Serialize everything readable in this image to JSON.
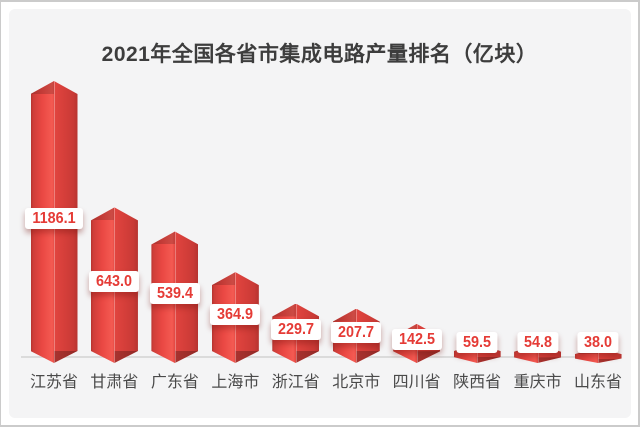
{
  "page": {
    "background": "#ffffff",
    "panel_background": "#f4f4f5",
    "frame_border_color": "#cbcbcb"
  },
  "chart_data": {
    "type": "bar",
    "title": "2021年全国各省市集成电路产量排名（亿块）",
    "title_color": "#3d3d3d",
    "categories": [
      "江苏省",
      "甘肃省",
      "广东省",
      "上海市",
      "浙江省",
      "北京市",
      "四川省",
      "陕西省",
      "重庆市",
      "山东省"
    ],
    "values": [
      1186.1,
      643.0,
      539.4,
      364.9,
      229.7,
      207.7,
      142.5,
      59.5,
      54.8,
      38.0
    ],
    "value_labels": [
      "1186.1",
      "643.0",
      "539.4",
      "364.9",
      "229.7",
      "207.7",
      "142.5",
      "59.5",
      "54.8",
      "38.0"
    ],
    "unit": "亿块",
    "ylim": [
      0,
      1186.1
    ],
    "grid": false,
    "legend": "none",
    "orientation": "vertical",
    "bar_shape": "pointed-top-and-bottom-crystal",
    "value_text_color": "#e53b36",
    "category_color": "#4a4a4a",
    "axis_line_color": "#dbdbdb",
    "bar_gradient": [
      "#b5342f",
      "#cf3e39",
      "#ea4843",
      "#f45a52",
      "#e0443f",
      "#d63f3a",
      "#c93a36",
      "#b53430"
    ],
    "bar_shade_dark": "rgba(0,0,0,0.16)",
    "bar_shade_darker": "rgba(0,0,0,0.25)"
  }
}
